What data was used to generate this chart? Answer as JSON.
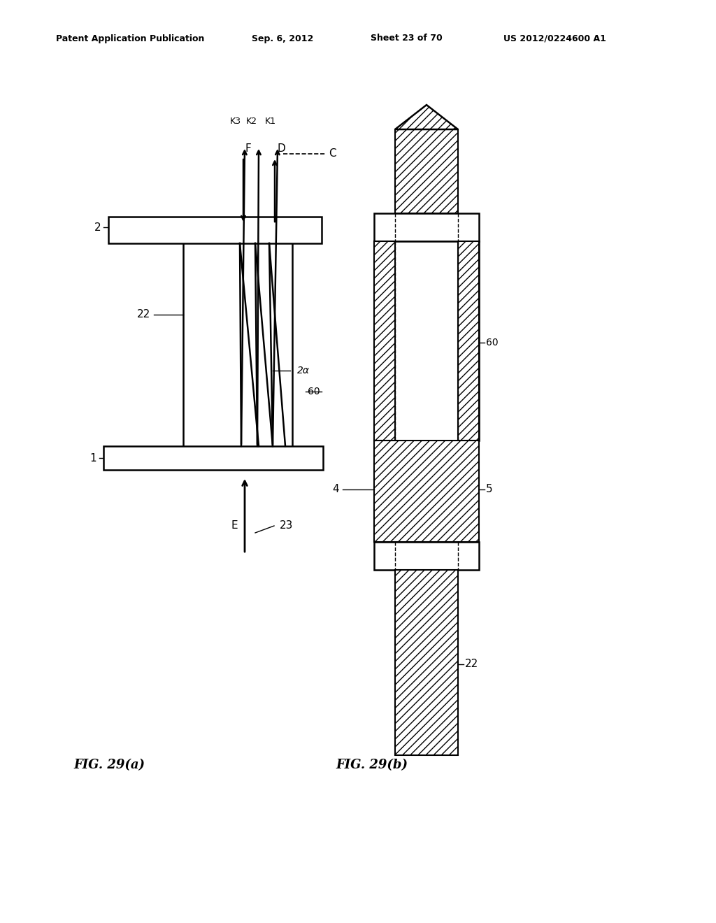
{
  "bg_color": "#ffffff",
  "line_color": "#000000",
  "header_text": "Patent Application Publication",
  "header_date": "Sep. 6, 2012",
  "header_sheet": "Sheet 23 of 70",
  "header_patent": "US 2012/0224600 A1",
  "fig_a_label": "FIG. 29(a)",
  "fig_b_label": "FIG. 29(b)"
}
